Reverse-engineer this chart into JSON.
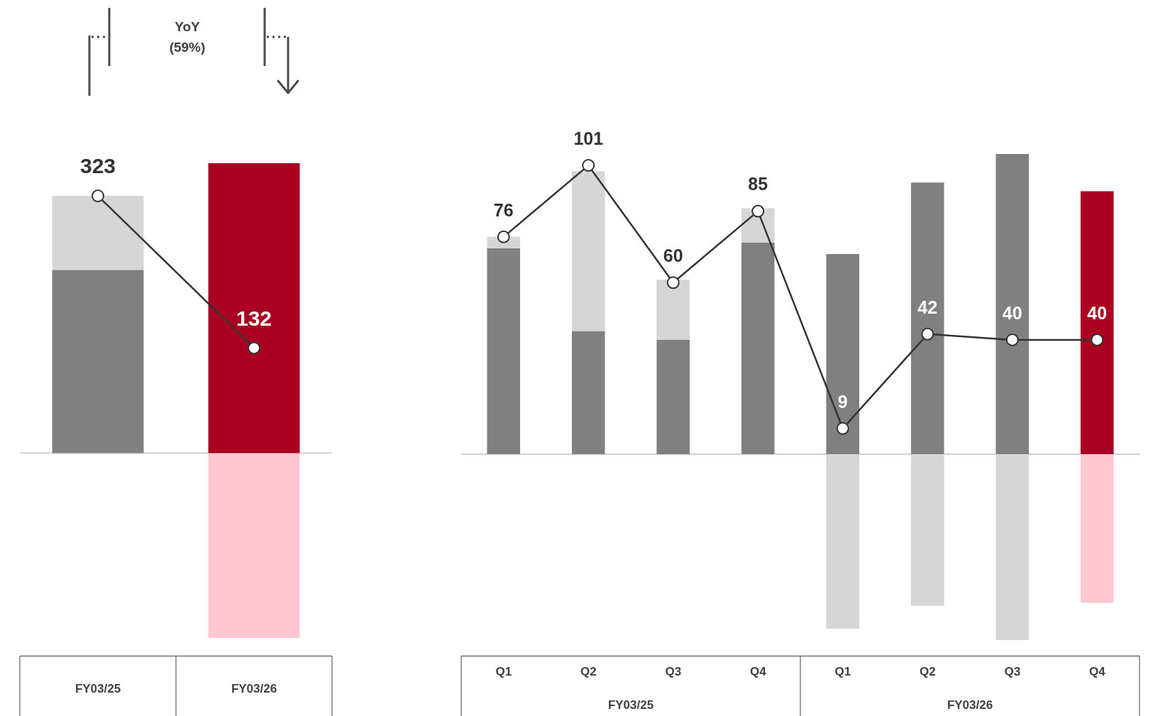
{
  "chart_data": [
    {
      "type": "bar",
      "categories": [
        "FY03/25",
        "FY03/26"
      ],
      "stacked": true,
      "tick_labels": "x",
      "annotations": [
        "YoY",
        "(59%)"
      ],
      "series": [
        {
          "colors": [
            "#808080",
            "#aa0022"
          ],
          "values": [
            230,
            364
          ]
        },
        {
          "colors": [
            "#d6d6d6",
            "#ffc7d1"
          ],
          "values": [
            93,
            -232
          ]
        },
        {
          "type": "line",
          "color": "#333333",
          "marker": "circle",
          "values": [
            323,
            132
          ],
          "value_labels": [
            "323",
            "132"
          ]
        }
      ]
    },
    {
      "type": "bar",
      "categories": [
        "Q1",
        "Q2",
        "Q3",
        "Q4",
        "Q1",
        "Q2",
        "Q3",
        "Q4"
      ],
      "stacked": true,
      "tick_labels": "x",
      "annotations": [
        "FY03/25",
        "FY03/26"
      ],
      "series": [
        {
          "colors": [
            "#808080",
            "#808080",
            "#808080",
            "#808080",
            "#808080",
            "#808080",
            "#808080",
            "#aa0022"
          ],
          "values": [
            72,
            43,
            40,
            74,
            70,
            95,
            105,
            92
          ]
        },
        {
          "colors": [
            "#d6d6d6",
            "#d6d6d6",
            "#d6d6d6",
            "#d6d6d6",
            "#d6d6d6",
            "#d6d6d6",
            "#d6d6d6",
            "#ffc7d1"
          ],
          "values": [
            4,
            56,
            21,
            12,
            -61,
            -53,
            -65,
            -52
          ]
        },
        {
          "type": "line",
          "color": "#333333",
          "marker": "circle",
          "values": [
            76,
            101,
            60,
            85,
            9,
            42,
            40,
            40
          ],
          "value_labels": [
            "76",
            "101",
            "60",
            "85",
            "9",
            "42",
            "40",
            "40"
          ]
        }
      ]
    }
  ]
}
